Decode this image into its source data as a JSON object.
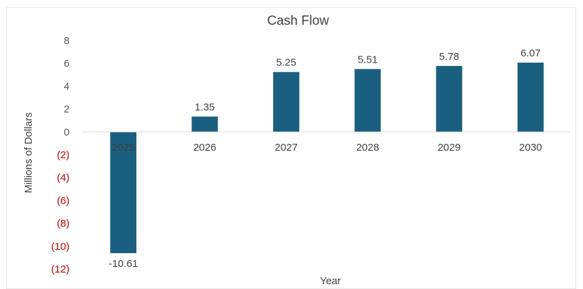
{
  "chart_data": {
    "type": "bar",
    "title": "Cash Flow",
    "xlabel": "Year",
    "ylabel": "Millions of Dollars",
    "categories": [
      "2025",
      "2026",
      "2027",
      "2028",
      "2029",
      "2030"
    ],
    "values": [
      -10.61,
      1.35,
      5.25,
      5.51,
      5.78,
      6.07
    ],
    "data_labels": [
      "-10.61",
      "1.35",
      "5.25",
      "5.51",
      "5.78",
      "6.07"
    ],
    "ylim": [
      -12,
      8
    ],
    "yticks": [
      8,
      6,
      4,
      2,
      0,
      -2,
      -4,
      -6,
      -8,
      -10,
      -12
    ],
    "ytick_labels": [
      "8",
      "6",
      "4",
      "2",
      "0",
      "(2)",
      "(4)",
      "(6)",
      "(8)",
      "(10)",
      "(12)"
    ],
    "grid": false,
    "legend": "none",
    "colors": {
      "bar": "#1b5f80",
      "tick_positive": "#595959",
      "tick_negative": "#c00000",
      "axis": "#d9d9d9"
    }
  }
}
